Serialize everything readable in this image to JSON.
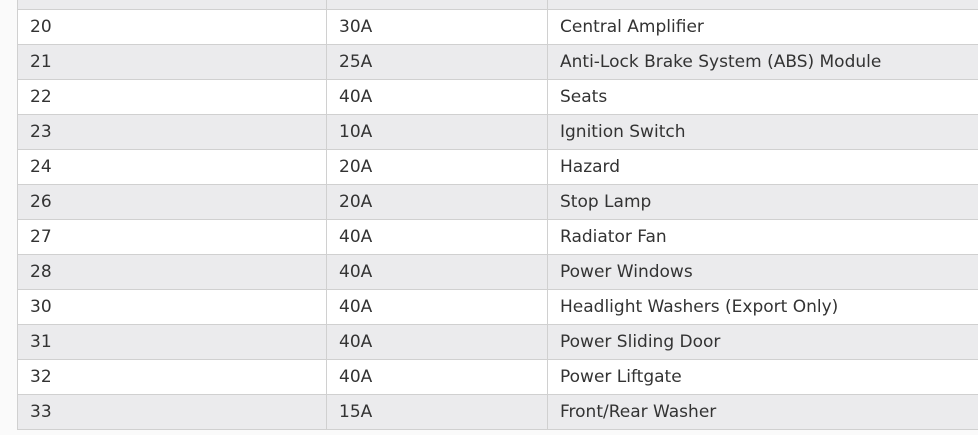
{
  "table": {
    "rows": [
      {
        "no": "",
        "amp": "",
        "desc": ""
      },
      {
        "no": "20",
        "amp": "30A",
        "desc": "Central Amplifier"
      },
      {
        "no": "21",
        "amp": "25A",
        "desc": "Anti-Lock Brake System (ABS) Module"
      },
      {
        "no": "22",
        "amp": "40A",
        "desc": "Seats"
      },
      {
        "no": "23",
        "amp": "10A",
        "desc": "Ignition Switch"
      },
      {
        "no": "24",
        "amp": "20A",
        "desc": "Hazard"
      },
      {
        "no": "26",
        "amp": "20A",
        "desc": "Stop Lamp"
      },
      {
        "no": "27",
        "amp": "40A",
        "desc": "Radiator Fan"
      },
      {
        "no": "28",
        "amp": "40A",
        "desc": "Power Windows"
      },
      {
        "no": "30",
        "amp": "40A",
        "desc": "Headlight Washers (Export Only)"
      },
      {
        "no": "31",
        "amp": "40A",
        "desc": "Power Sliding Door"
      },
      {
        "no": "32",
        "amp": "40A",
        "desc": "Power Liftgate"
      },
      {
        "no": "33",
        "amp": "15A",
        "desc": "Front/Rear Washer"
      }
    ]
  }
}
